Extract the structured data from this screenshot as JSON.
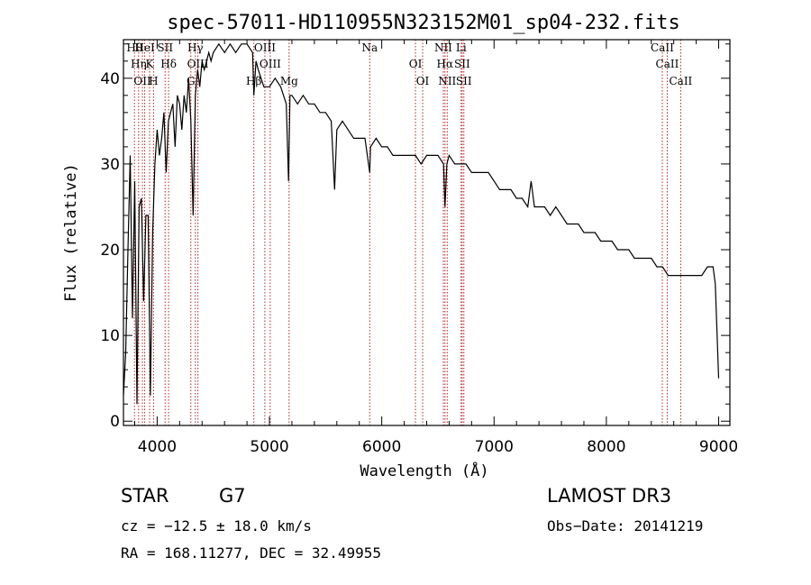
{
  "chart_data": {
    "type": "line",
    "title": "spec-57011-HD110955N323152M01_sp04-232.fits",
    "xlabel": "Wavelength (Å)",
    "ylabel": "Flux (relative)",
    "xlim": [
      3700,
      9100
    ],
    "ylim": [
      -0.5,
      44.5
    ],
    "x_ticks": [
      4000,
      5000,
      6000,
      7000,
      8000,
      9000
    ],
    "y_ticks": [
      0,
      10,
      20,
      30,
      40
    ],
    "grid": false,
    "series": [
      {
        "name": "flux",
        "x": [
          3700,
          3720,
          3740,
          3760,
          3780,
          3800,
          3820,
          3840,
          3860,
          3880,
          3900,
          3920,
          3940,
          3960,
          3980,
          4000,
          4020,
          4040,
          4060,
          4080,
          4100,
          4120,
          4140,
          4160,
          4180,
          4200,
          4220,
          4240,
          4260,
          4280,
          4300,
          4320,
          4340,
          4360,
          4380,
          4400,
          4420,
          4440,
          4460,
          4480,
          4500,
          4550,
          4600,
          4650,
          4700,
          4750,
          4800,
          4850,
          4861,
          4880,
          4900,
          4950,
          5000,
          5050,
          5100,
          5150,
          5170,
          5183,
          5200,
          5250,
          5300,
          5350,
          5400,
          5450,
          5500,
          5550,
          5580,
          5600,
          5650,
          5700,
          5750,
          5800,
          5850,
          5893,
          5900,
          5950,
          6000,
          6050,
          6100,
          6150,
          6200,
          6250,
          6300,
          6350,
          6400,
          6450,
          6500,
          6550,
          6563,
          6580,
          6600,
          6650,
          6700,
          6750,
          6800,
          6850,
          6900,
          6950,
          7000,
          7050,
          7100,
          7150,
          7200,
          7250,
          7300,
          7330,
          7360,
          7400,
          7450,
          7500,
          7550,
          7600,
          7650,
          7700,
          7750,
          7800,
          7850,
          7900,
          7950,
          8000,
          8050,
          8100,
          8150,
          8200,
          8250,
          8300,
          8350,
          8400,
          8450,
          8500,
          8550,
          8600,
          8650,
          8700,
          8750,
          8800,
          8850,
          8900,
          8950,
          8970,
          9000
        ],
        "values": [
          3,
          8,
          20,
          31,
          12,
          28,
          2,
          25,
          26,
          14,
          24,
          24,
          3,
          22,
          30,
          34,
          31,
          33,
          36,
          29,
          35,
          36,
          37,
          32,
          38,
          37,
          34,
          38,
          36,
          40,
          35,
          24,
          38,
          41,
          39,
          42,
          41,
          42,
          43,
          42,
          43,
          44,
          43,
          44,
          43,
          44,
          44,
          43,
          38,
          42,
          41,
          39,
          39,
          40,
          39,
          37,
          28,
          38,
          38,
          37,
          38,
          37,
          37,
          36,
          36,
          35,
          27,
          34,
          35,
          34,
          33,
          33,
          33,
          29,
          32,
          33,
          32,
          32,
          31,
          31,
          31,
          31,
          31,
          30,
          31,
          31,
          31,
          30,
          25,
          30,
          31,
          30,
          30,
          30,
          29,
          29,
          29,
          29,
          28,
          27,
          27,
          27,
          26,
          26,
          25,
          28,
          25,
          25,
          25,
          24,
          25,
          24,
          23,
          23,
          23,
          22,
          22,
          22,
          21,
          21,
          21,
          20,
          20,
          20,
          19,
          19,
          19,
          19,
          18,
          18,
          17,
          17,
          17,
          17,
          17,
          17,
          17,
          18,
          18,
          16,
          5
        ]
      }
    ],
    "line_markers": [
      {
        "wl": 3798,
        "labels": [
          "Hθ"
        ]
      },
      {
        "wl": 3835,
        "labels": [
          "Hη"
        ]
      },
      {
        "wl": 3869,
        "labels": [
          "OII"
        ]
      },
      {
        "wl": 3889,
        "labels": [
          "HeI"
        ]
      },
      {
        "wl": 3933,
        "labels": [
          "K"
        ]
      },
      {
        "wl": 3968,
        "labels": [
          "H"
        ]
      },
      {
        "wl": 4071,
        "labels": [
          "SII"
        ]
      },
      {
        "wl": 4102,
        "labels": [
          "Hδ"
        ]
      },
      {
        "wl": 4300,
        "labels": [
          "G"
        ]
      },
      {
        "wl": 4340,
        "labels": [
          "Hγ"
        ]
      },
      {
        "wl": 4363,
        "labels": [
          "OIII"
        ]
      },
      {
        "wl": 4861,
        "labels": [
          "Hβ"
        ]
      },
      {
        "wl": 4959,
        "labels": [
          "OIII"
        ]
      },
      {
        "wl": 5007,
        "labels": [
          "OIII"
        ]
      },
      {
        "wl": 5175,
        "labels": [
          "Mg"
        ]
      },
      {
        "wl": 5893,
        "labels": [
          "Na"
        ]
      },
      {
        "wl": 6300,
        "labels": [
          "OI"
        ]
      },
      {
        "wl": 6364,
        "labels": [
          "OI"
        ]
      },
      {
        "wl": 6548,
        "labels": [
          "NII"
        ]
      },
      {
        "wl": 6563,
        "labels": [
          "Hα"
        ]
      },
      {
        "wl": 6583,
        "labels": [
          "NII"
        ]
      },
      {
        "wl": 6707,
        "labels": [
          "Li"
        ]
      },
      {
        "wl": 6716,
        "labels": [
          "SII"
        ]
      },
      {
        "wl": 6731,
        "labels": [
          "SII"
        ]
      },
      {
        "wl": 8498,
        "labels": [
          "CaII"
        ]
      },
      {
        "wl": 8542,
        "labels": [
          "CaII"
        ]
      },
      {
        "wl": 8662,
        "labels": [
          "CaII"
        ]
      }
    ]
  },
  "info": {
    "object_type": "STAR",
    "subclass": "G7",
    "survey": "LAMOST DR3",
    "cz": "cz = −12.5 ± 18.0 km/s",
    "obs_date": "Obs−Date: 20141219",
    "coords": "RA = 168.11277, DEC =  32.49955"
  },
  "colors": {
    "line_marker": "#b22222",
    "spectrum": "#000000"
  }
}
